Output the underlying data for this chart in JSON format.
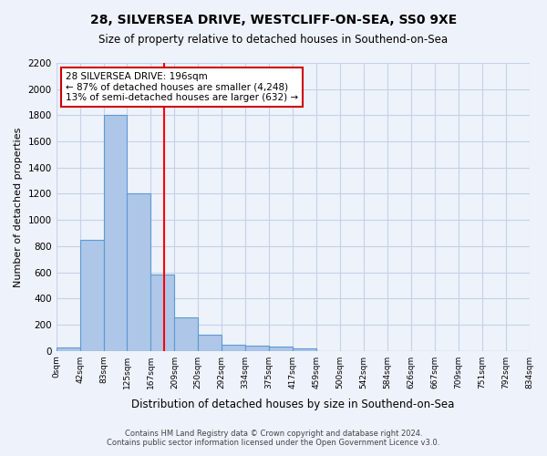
{
  "title": "28, SILVERSEA DRIVE, WESTCLIFF-ON-SEA, SS0 9XE",
  "subtitle": "Size of property relative to detached houses in Southend-on-Sea",
  "xlabel": "Distribution of detached houses by size in Southend-on-Sea",
  "ylabel": "Number of detached properties",
  "bar_values": [
    25,
    850,
    1800,
    1200,
    580,
    255,
    120,
    45,
    40,
    30,
    20,
    0,
    0,
    0,
    0,
    0,
    0,
    0,
    0,
    0
  ],
  "bin_labels": [
    "0sqm",
    "42sqm",
    "83sqm",
    "125sqm",
    "167sqm",
    "209sqm",
    "250sqm",
    "292sqm",
    "334sqm",
    "375sqm",
    "417sqm",
    "459sqm",
    "500sqm",
    "542sqm",
    "584sqm",
    "626sqm",
    "667sqm",
    "709sqm",
    "751sqm",
    "792sqm",
    "834sqm"
  ],
  "bar_color": "#aec6e8",
  "bar_edge_color": "#5b9bd5",
  "red_line_x": 4.55,
  "annotation_text": "28 SILVERSEA DRIVE: 196sqm\n← 87% of detached houses are smaller (4,248)\n13% of semi-detached houses are larger (632) →",
  "annotation_box_color": "#ffffff",
  "annotation_box_edge": "#cc0000",
  "ylim": [
    0,
    2200
  ],
  "yticks": [
    0,
    200,
    400,
    600,
    800,
    1000,
    1200,
    1400,
    1600,
    1800,
    2000,
    2200
  ],
  "footer_line1": "Contains HM Land Registry data © Crown copyright and database right 2024.",
  "footer_line2": "Contains public sector information licensed under the Open Government Licence v3.0.",
  "background_color": "#eef2fb",
  "grid_color": "#c8d0e8"
}
